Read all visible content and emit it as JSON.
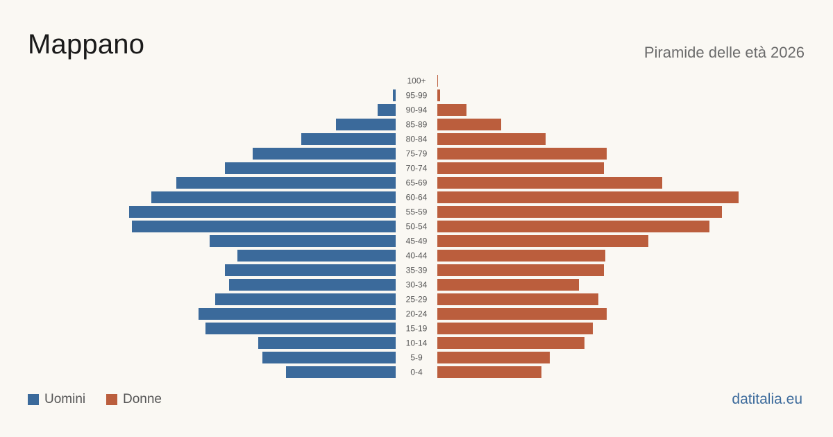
{
  "header": {
    "title": "Mappano",
    "subtitle": "Piramide delle età 2026"
  },
  "legend": {
    "male_label": "Uomini",
    "female_label": "Donne"
  },
  "brand": "datitalia.eu",
  "colors": {
    "male": "#3b6a9b",
    "female": "#bb5e3d",
    "background": "#faf8f3",
    "label": "#555555"
  },
  "chart_data": {
    "type": "bar",
    "orientation": "horizontal-pyramid",
    "categories": [
      "100+",
      "95-99",
      "90-94",
      "85-89",
      "80-84",
      "75-79",
      "70-74",
      "65-69",
      "60-64",
      "55-59",
      "50-54",
      "45-49",
      "40-44",
      "35-39",
      "30-34",
      "25-29",
      "20-24",
      "15-19",
      "10-14",
      "5-9",
      "0-4"
    ],
    "series": [
      {
        "name": "Uomini",
        "values": [
          0,
          2,
          13,
          43,
          68,
          103,
          123,
          158,
          176,
          192,
          190,
          134,
          114,
          123,
          120,
          130,
          142,
          137,
          99,
          96,
          79
        ]
      },
      {
        "name": "Donne",
        "values": [
          0.5,
          2,
          21,
          46,
          78,
          122,
          120,
          162,
          217,
          205,
          196,
          152,
          121,
          120,
          102,
          116,
          122,
          112,
          106,
          81,
          75
        ]
      }
    ],
    "xlim": [
      0,
      220
    ],
    "grid": false,
    "legend_position": "bottom-left"
  }
}
